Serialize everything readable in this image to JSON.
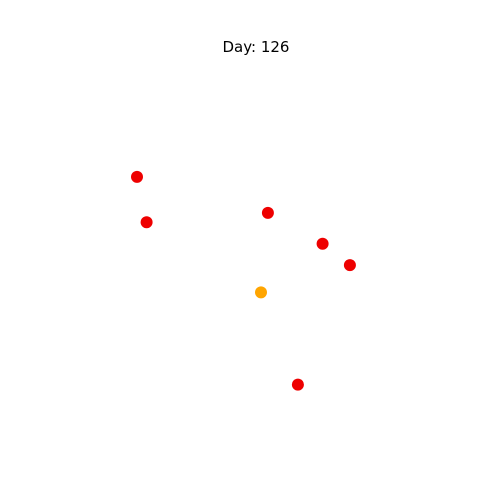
{
  "chart_data": {
    "type": "scatter",
    "title": "Day: 126",
    "xlabel": "",
    "ylabel": "",
    "axes_visible": false,
    "grid": false,
    "xlim": [
      0,
      1
    ],
    "ylim": [
      0,
      1
    ],
    "points": [
      {
        "x": 0.187,
        "y": 0.717,
        "color": "#ee0000"
      },
      {
        "x": 0.212,
        "y": 0.591,
        "color": "#ee0000"
      },
      {
        "x": 0.527,
        "y": 0.617,
        "color": "#ee0000"
      },
      {
        "x": 0.669,
        "y": 0.531,
        "color": "#ee0000"
      },
      {
        "x": 0.74,
        "y": 0.472,
        "color": "#ee0000"
      },
      {
        "x": 0.509,
        "y": 0.396,
        "color": "#ffa500"
      },
      {
        "x": 0.605,
        "y": 0.14,
        "color": "#ee0000"
      }
    ]
  }
}
